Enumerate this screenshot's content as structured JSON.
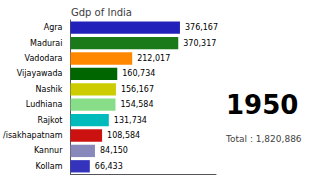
{
  "chart_data": {
    "type": "bar",
    "orientation": "horizontal",
    "title": "Gdp of India",
    "categories": [
      "Agra",
      "Madurai",
      "Vadodara",
      "Vijayawada",
      "Nashik",
      "Ludhiana",
      "Rajkot",
      "/isakhapatnam",
      "Kannur",
      "Kollam"
    ],
    "values": [
      376167,
      370317,
      212017,
      160734,
      156167,
      154584,
      131734,
      108584,
      84150,
      66433
    ],
    "value_labels": [
      "376,167",
      "370,317",
      "212,017",
      "160,734",
      "156,167",
      "154,584",
      "131,734",
      "108,584",
      "84,150",
      "66,433"
    ],
    "colors": [
      "#2222bb",
      "#1a7a1a",
      "#ff8800",
      "#006600",
      "#cccc00",
      "#88dd88",
      "#00bbbb",
      "#cc1111",
      "#8888bb",
      "#3333bb"
    ],
    "data_labels": true,
    "tick_labels": "y",
    "grid": false,
    "xlim": [
      0,
      500000
    ],
    "annotations": [
      "1950",
      "Total : 1,820,886"
    ]
  }
}
